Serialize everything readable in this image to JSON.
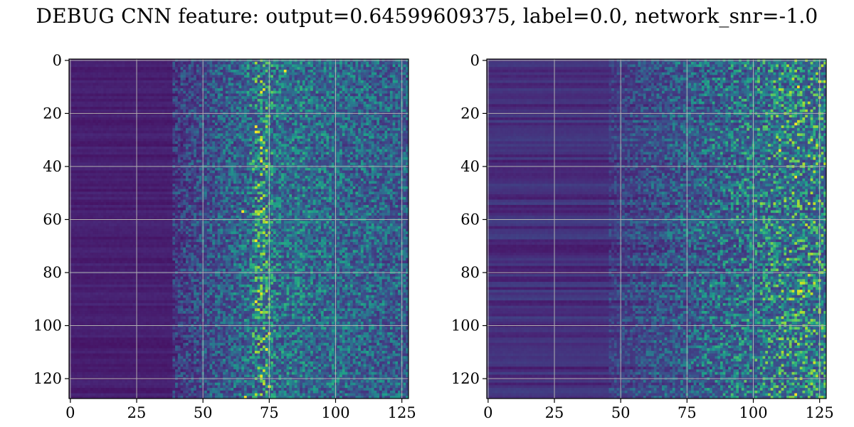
{
  "figure": {
    "title": "DEBUG CNN feature: output=0.64599609375, label=0.0, network_snr=-1.0"
  },
  "chart_data": [
    {
      "type": "heatmap",
      "title": "",
      "xlabel": "",
      "ylabel": "",
      "shape": [
        128,
        128
      ],
      "xlim": [
        -0.5,
        127.5
      ],
      "ylim": [
        127.5,
        -0.5
      ],
      "x_ticks": [
        0,
        25,
        50,
        75,
        100,
        125
      ],
      "x_tick_labels": [
        "0",
        "25",
        "50",
        "75",
        "100",
        "125"
      ],
      "y_ticks": [
        0,
        20,
        40,
        60,
        80,
        100,
        120
      ],
      "y_tick_labels": [
        "0",
        "20",
        "40",
        "60",
        "80",
        "100",
        "120"
      ],
      "grid": true,
      "colormap": "viridis",
      "description_of_values": "low uniform values for columns 0-40, noisy medium values increasing past column ~45, bright vertical band near column ~70-76",
      "hotspots": [
        [
          4,
          81
        ],
        [
          27,
          70
        ],
        [
          25,
          70
        ],
        [
          68,
          70
        ],
        [
          91,
          70
        ],
        [
          103,
          75
        ],
        [
          109,
          74
        ],
        [
          57,
          65
        ],
        [
          127,
          66
        ],
        [
          40,
          74
        ],
        [
          123,
          75
        ]
      ]
    },
    {
      "type": "heatmap",
      "title": "",
      "xlabel": "",
      "ylabel": "",
      "shape": [
        128,
        128
      ],
      "xlim": [
        -0.5,
        127.5
      ],
      "ylim": [
        127.5,
        -0.5
      ],
      "x_ticks": [
        0,
        25,
        50,
        75,
        100,
        125
      ],
      "x_tick_labels": [
        "0",
        "25",
        "50",
        "75",
        "100",
        "125"
      ],
      "y_ticks": [
        0,
        20,
        40,
        60,
        80,
        100,
        120
      ],
      "y_tick_labels": [
        "0",
        "20",
        "40",
        "60",
        "80",
        "100",
        "120"
      ],
      "grid": true,
      "colormap": "viridis",
      "description_of_values": "horizontal stripes at low values for columns 0-50, noise rising steadily toward the right edge with bright cells near columns 100-125",
      "hotspots": [
        [
          10,
          117
        ],
        [
          24,
          116
        ],
        [
          44,
          116
        ],
        [
          126,
          116
        ],
        [
          8,
          125
        ],
        [
          87,
          118
        ],
        [
          34,
          110
        ]
      ]
    }
  ]
}
